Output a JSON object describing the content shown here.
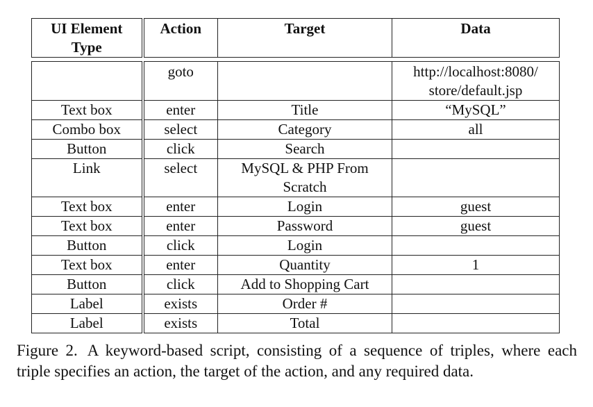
{
  "table": {
    "headers": [
      "UI Element Type",
      "Action",
      "Target",
      "Data"
    ],
    "rows": [
      {
        "type": "",
        "action": "goto",
        "target": "",
        "data": "http://localhost:8080/ store/default.jsp"
      },
      {
        "type": "Text box",
        "action": "enter",
        "target": "Title",
        "data": "“MySQL”"
      },
      {
        "type": "Combo box",
        "action": "select",
        "target": "Category",
        "data": "all"
      },
      {
        "type": "Button",
        "action": "click",
        "target": "Search",
        "data": ""
      },
      {
        "type": "Link",
        "action": "select",
        "target": "MySQL & PHP From Scratch",
        "data": ""
      },
      {
        "type": "Text box",
        "action": "enter",
        "target": "Login",
        "data": "guest"
      },
      {
        "type": "Text box",
        "action": "enter",
        "target": "Password",
        "data": "guest"
      },
      {
        "type": "Button",
        "action": "click",
        "target": "Login",
        "data": ""
      },
      {
        "type": "Text box",
        "action": "enter",
        "target": "Quantity",
        "data": "1"
      },
      {
        "type": "Button",
        "action": "click",
        "target": "Add to Shopping Cart",
        "data": ""
      },
      {
        "type": "Label",
        "action": "exists",
        "target": "Order #",
        "data": ""
      },
      {
        "type": "Label",
        "action": "exists",
        "target": "Total",
        "data": ""
      }
    ]
  },
  "caption": {
    "label": "Figure 2.",
    "text": "A keyword-based script, consisting of a sequence of triples, where each triple specifies an action, the target of the action, and any required data."
  }
}
